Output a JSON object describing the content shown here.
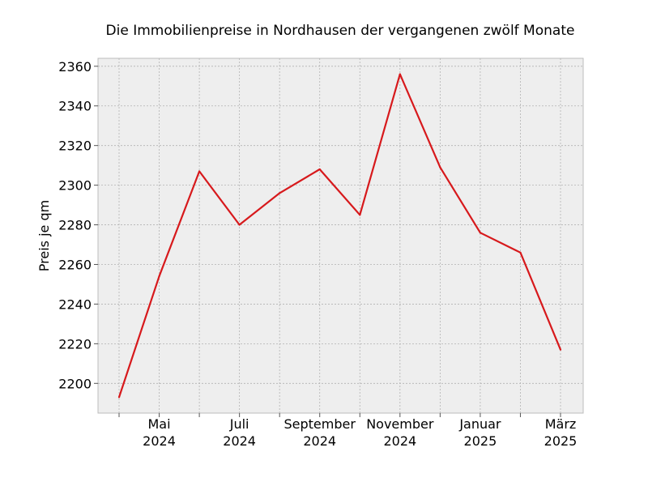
{
  "chart_data": {
    "type": "line",
    "title": "Die Immobilienpreise in Nordhausen der vergangenen zwölf Monate",
    "xlabel": "",
    "ylabel": "Preis je qm",
    "x": [
      "2024-04",
      "2024-05",
      "2024-06",
      "2024-07",
      "2024-08",
      "2024-09",
      "2024-10",
      "2024-11",
      "2024-12",
      "2025-01",
      "2025-02",
      "2025-03"
    ],
    "series": [
      {
        "values": [
          2193,
          2254,
          2307,
          2280,
          2296,
          2308,
          2285,
          2356,
          2309,
          2276,
          2266,
          2217
        ]
      }
    ],
    "ylim": [
      2185,
      2364
    ],
    "yticks": [
      "2200",
      "2220",
      "2240",
      "2260",
      "2280",
      "2300",
      "2320",
      "2340",
      "2360"
    ],
    "xtick_labels": [
      {
        "month": "Mai",
        "year": "2024"
      },
      {
        "month": "Juli",
        "year": "2024"
      },
      {
        "month": "September",
        "year": "2024"
      },
      {
        "month": "November",
        "year": "2024"
      },
      {
        "month": "Januar",
        "year": "2025"
      },
      {
        "month": "März",
        "year": "2025"
      }
    ],
    "grid": true,
    "line_color": "#d7191c",
    "background_color": "#eeeeee"
  }
}
